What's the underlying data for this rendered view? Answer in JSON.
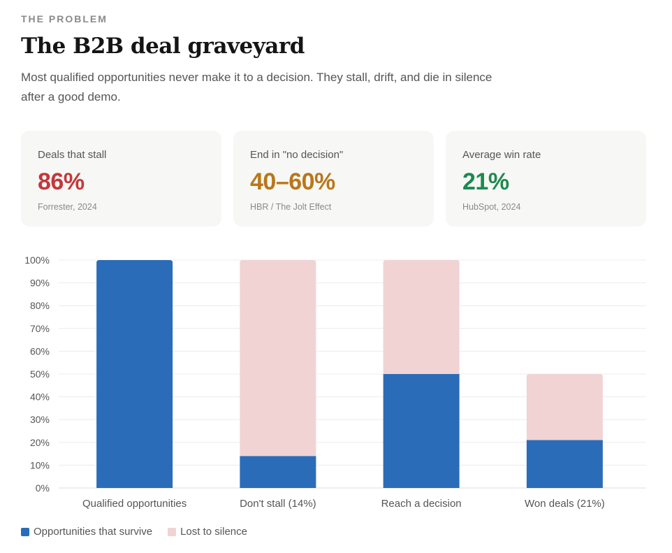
{
  "header": {
    "eyebrow": "THE PROBLEM",
    "title": "The B2B deal graveyard",
    "subtitle": "Most qualified opportunities never make it to a decision. They stall, drift, and die in silence after a good demo."
  },
  "stats": [
    {
      "label": "Deals that stall",
      "value": "86%",
      "source": "Forrester, 2024",
      "color": "#c4373b"
    },
    {
      "label": "End in \"no decision\"",
      "value": "40–60%",
      "source": "HBR / The Jolt Effect",
      "color": "#b9771a"
    },
    {
      "label": "Average win rate",
      "value": "21%",
      "source": "HubSpot, 2024",
      "color": "#1c8a4e"
    }
  ],
  "colors": {
    "survive": "#2b6cb8",
    "lost": "#f1d3d4",
    "grid": "#ececec",
    "axis": "#dcdcdc"
  },
  "chart_data": {
    "type": "bar",
    "stacked": true,
    "categories": [
      "Qualified opportunities",
      "Don't stall (14%)",
      "Reach a decision",
      "Won deals (21%)"
    ],
    "series": [
      {
        "name": "Opportunities that survive",
        "values": [
          100,
          14,
          50,
          21
        ]
      },
      {
        "name": "Lost to silence",
        "values": [
          0,
          86,
          50,
          29
        ]
      }
    ],
    "ylim": [
      0,
      100
    ],
    "yticks": [
      "0%",
      "10%",
      "20%",
      "30%",
      "40%",
      "50%",
      "60%",
      "70%",
      "80%",
      "90%",
      "100%"
    ],
    "title": "",
    "xlabel": "",
    "ylabel": "",
    "grid": true,
    "legend_position": "bottom-left"
  }
}
